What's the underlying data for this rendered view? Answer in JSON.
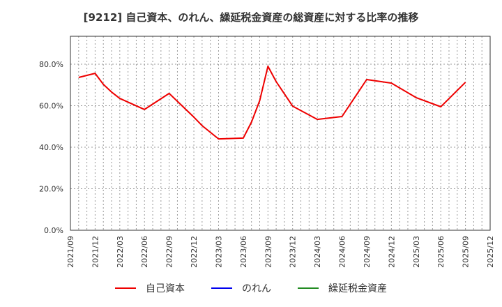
{
  "title": "[9212]  自己資本、のれん、繰延税金資産の総資産に対する比率の推移",
  "legend": [
    {
      "label": "自己資本",
      "color": "#ee0000"
    },
    {
      "label": "のれん",
      "color": "#0000ee"
    },
    {
      "label": "繰延税金資産",
      "color": "#228b22"
    }
  ],
  "chart_data": {
    "type": "line",
    "title": "[9212]  自己資本、のれん、繰延税金資産の総資産に対する比率の推移",
    "xlabel": "",
    "ylabel": "",
    "ylim": [
      0,
      90
    ],
    "yticks": [
      "0.0%",
      "20.0%",
      "40.0%",
      "60.0%",
      "80.0%"
    ],
    "ytick_values": [
      0,
      20,
      40,
      60,
      80
    ],
    "xticks": [
      "2021/09",
      "2021/12",
      "2022/03",
      "2022/06",
      "2022/09",
      "2022/12",
      "2023/03",
      "2023/06",
      "2023/09",
      "2023/12",
      "2024/03",
      "2024/06",
      "2024/09",
      "2024/12",
      "2025/03",
      "2025/06",
      "2025/09",
      "2025/12"
    ],
    "grid": true,
    "legend_position": "bottom",
    "series": [
      {
        "name": "自己資本",
        "color": "#ee0000",
        "x": [
          "2021/10",
          "2021/12",
          "2022/01",
          "2022/02",
          "2022/03",
          "2022/06",
          "2022/09",
          "2022/12",
          "2023/01",
          "2023/03",
          "2023/06",
          "2023/07",
          "2023/08",
          "2023/09",
          "2023/10",
          "2023/12",
          "2024/03",
          "2024/06",
          "2024/09",
          "2024/12",
          "2025/03",
          "2025/06",
          "2025/09"
        ],
        "values": [
          73.6,
          75.6,
          70.3,
          66.6,
          63.5,
          58.2,
          65.9,
          54.5,
          50.4,
          44.0,
          44.4,
          52.1,
          62.5,
          79.0,
          71.6,
          59.8,
          53.4,
          54.8,
          72.6,
          70.9,
          63.9,
          59.5,
          71.3
        ]
      },
      {
        "name": "のれん",
        "color": "#0000ee",
        "x": [],
        "values": []
      },
      {
        "name": "繰延税金資産",
        "color": "#228b22",
        "x": [],
        "values": []
      }
    ]
  }
}
